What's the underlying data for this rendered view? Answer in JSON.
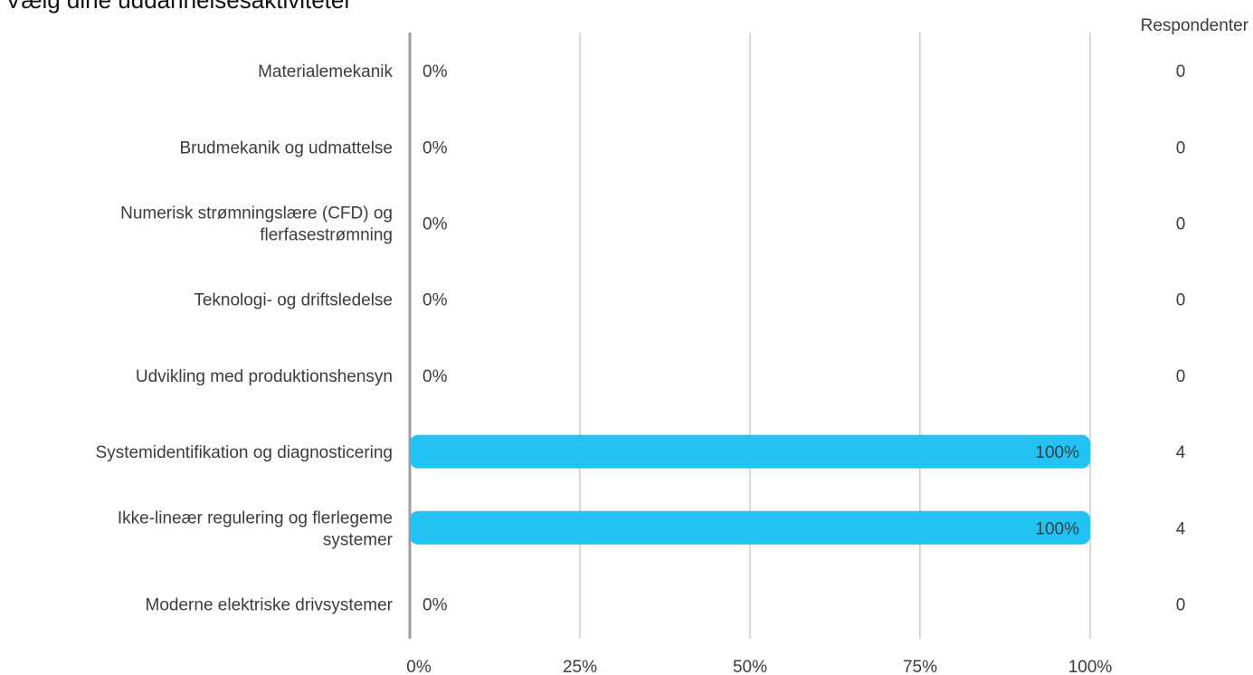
{
  "chart_data": {
    "type": "bar",
    "orientation": "horizontal",
    "title": "Vælg dine uddannelsesaktiviteter",
    "respondents_header": "Respondenter",
    "categories": [
      [
        "Materialemekanik"
      ],
      [
        "Brudmekanik og udmattelse"
      ],
      [
        "Numerisk strømningslære (CFD) og",
        "flerfasestrømning"
      ],
      [
        "Teknologi- og driftsledelse"
      ],
      [
        "Udvikling med produktionshensyn"
      ],
      [
        "Systemidentifikation og diagnosticering"
      ],
      [
        "Ikke-lineær regulering og flerlegeme",
        "systemer"
      ],
      [
        "Moderne elektriske drivsystemer"
      ]
    ],
    "values": [
      0,
      0,
      0,
      0,
      0,
      100,
      100,
      0
    ],
    "value_labels": [
      "0%",
      "0%",
      "0%",
      "0%",
      "0%",
      "100%",
      "100%",
      "0%"
    ],
    "respondents": [
      "0",
      "0",
      "0",
      "0",
      "0",
      "4",
      "4",
      "0"
    ],
    "xlim": [
      0,
      100
    ],
    "xticks": [
      0,
      25,
      50,
      75,
      100
    ],
    "xtick_labels": [
      "0%",
      "25%",
      "50%",
      "75%",
      "100%"
    ],
    "grid": true,
    "bar_color": "#22c3f3",
    "grid_color": "#bdbdbd",
    "axis_color": "#9e9e9e"
  }
}
